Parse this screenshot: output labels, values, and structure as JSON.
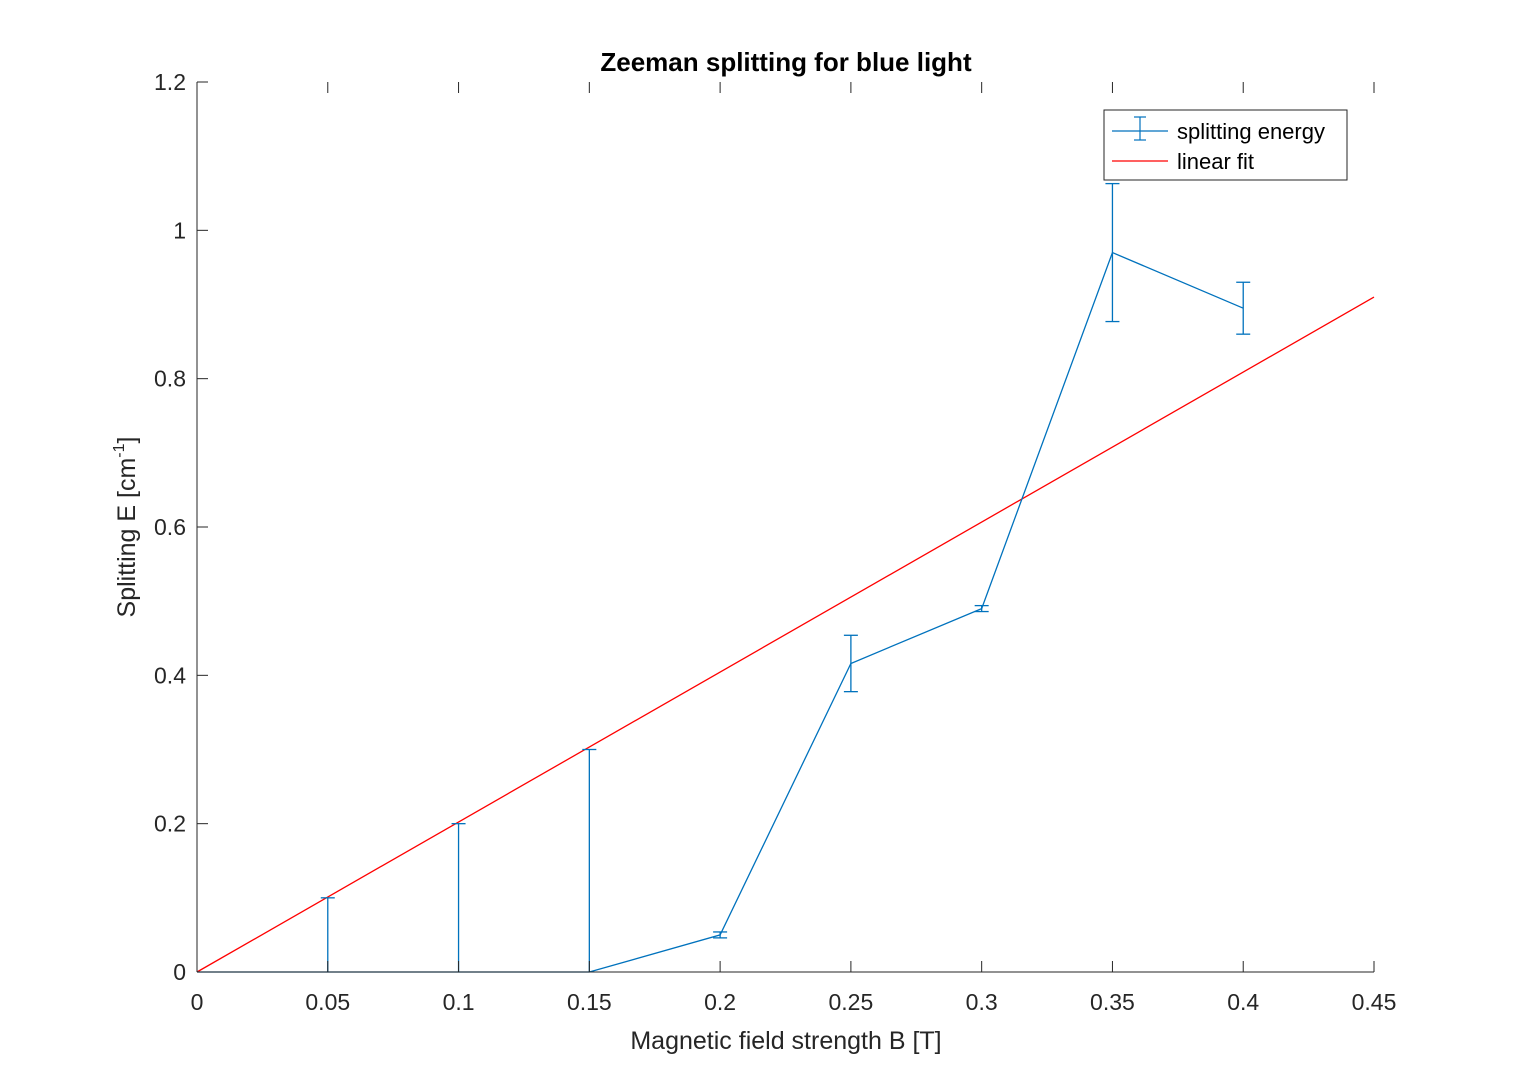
{
  "chart_data": {
    "type": "line",
    "title": "Zeeman splitting for blue light",
    "xlabel": "Magnetic field strength B [T]",
    "ylabel_main": "Splitting E [cm",
    "ylabel_sup": "-1",
    "ylabel_close": "]",
    "xlim": [
      0,
      0.45
    ],
    "ylim": [
      0,
      1.2
    ],
    "xticks": [
      0,
      0.05,
      0.1,
      0.15,
      0.2,
      0.25,
      0.3,
      0.35,
      0.4,
      0.45
    ],
    "xtick_labels": [
      "0",
      "0.05",
      "0.1",
      "0.15",
      "0.2",
      "0.25",
      "0.3",
      "0.35",
      "0.4",
      "0.45"
    ],
    "yticks": [
      0,
      0.2,
      0.4,
      0.6,
      0.8,
      1.0,
      1.2
    ],
    "ytick_labels": [
      "0",
      "0.2",
      "0.4",
      "0.6",
      "0.8",
      "1",
      "1.2"
    ],
    "grid": false,
    "legend_position": "top-right",
    "series": [
      {
        "name": "splitting energy",
        "style": "line-with-errorbars",
        "color": "#0072BD",
        "x": [
          0,
          0.05,
          0.1,
          0.15,
          0.2,
          0.25,
          0.3,
          0.35,
          0.4
        ],
        "y": [
          0,
          0,
          0,
          0,
          0.05,
          0.416,
          0.49,
          0.97,
          0.895
        ],
        "err": [
          0,
          0.1,
          0.2,
          0.3,
          0.004,
          0.038,
          0.004,
          0.093,
          0.035
        ]
      },
      {
        "name": "linear fit",
        "style": "line",
        "color": "#FF0000",
        "x": [
          0,
          0.45
        ],
        "y": [
          0,
          0.91
        ]
      }
    ]
  }
}
